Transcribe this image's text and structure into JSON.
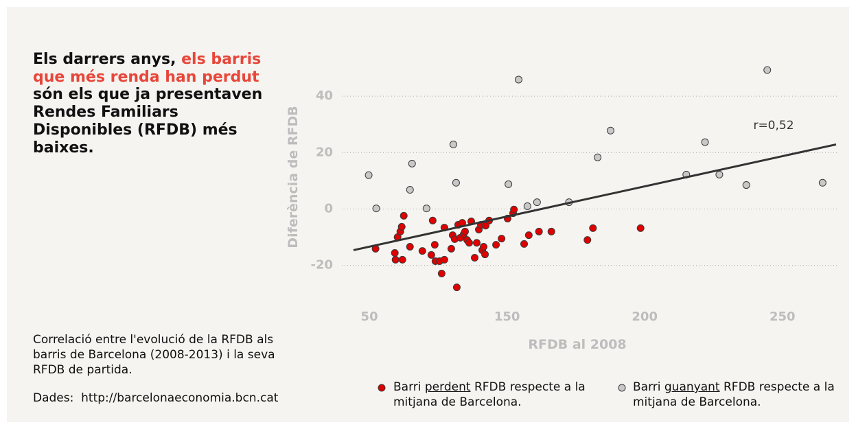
{
  "headline_parts": [
    "Els darrers anys, ",
    "els barris que més renda han perdut",
    " són els que ja presentaven Rendes Familiars Disponibles (RFDB) més baixes."
  ],
  "subtitle": "Correlació entre l'evolució de la RFDB als barris de Barcelona (2008-2013) i la seva RFDB de partida.",
  "source": "Dades:  http://barcelonaeconomia.bcn.cat",
  "chart_data": {
    "type": "scatter",
    "x_label": "RFDB al 2008",
    "y_label": "Diferència de RFDB",
    "annotation": "r=0,52",
    "xlim": [
      36,
      270
    ],
    "xticks": [
      50,
      150,
      200,
      250
    ],
    "ylim": [
      -33,
      51
    ],
    "yticks": [
      -20,
      0,
      20,
      40
    ],
    "grid": true,
    "trendline": {
      "color": "#333333",
      "x": [
        38.5,
        269.5
      ],
      "y": [
        -14.6,
        22.9
      ]
    },
    "series": [
      {
        "name": "Barri perdent RFDB respecte a la mitjana de Barcelona.",
        "color": "#e00000",
        "x": [
          54.5,
          68.5,
          69,
          74,
          70.5,
          72.5,
          73.5,
          75,
          79.5,
          88.5,
          95,
          96,
          97.5,
          98,
          101,
          102.5,
          104.5,
          104.5,
          109.5,
          110.5,
          112,
          113.5,
          114.5,
          116,
          117.5,
          118.5,
          119.5,
          121,
          122.5,
          124,
          126.5,
          128,
          129.5,
          131,
          132,
          133,
          134,
          134.5,
          137,
          142,
          146,
          150.2,
          152.2,
          152.5,
          156.2,
          157.9,
          161.6,
          166.1,
          179.2,
          181.2,
          198.5
        ],
        "values": [
          -14.1,
          -15.6,
          -18.0,
          -18.0,
          -10.0,
          -8.0,
          -6.3,
          -2.4,
          -13.4,
          -14.9,
          -16.3,
          -4.1,
          -12.7,
          -18.5,
          -18.5,
          -22.9,
          -18.0,
          -6.6,
          -14.1,
          -9.3,
          -10.7,
          -27.8,
          -5.6,
          -10.2,
          -4.9,
          -9.0,
          -8.0,
          -11.0,
          -12.0,
          -4.4,
          -17.3,
          -12.0,
          -7.3,
          -5.6,
          -14.6,
          -13.4,
          -16.1,
          -5.9,
          -4.1,
          -12.7,
          -10.5,
          -3.4,
          -1.5,
          -0.2,
          -12.4,
          -9.3,
          -8.0,
          -8.0,
          -11.0,
          -6.8,
          -6.8
        ]
      },
      {
        "name": "Barri guanyant RFDB respecte a la mitjana de Barcelona.",
        "color": "#c8c8c8",
        "x": [
          49.5,
          55,
          81,
          79.5,
          91.5,
          111,
          113,
          150.5,
          154.2,
          157.4,
          160.9,
          172.5,
          182.9,
          187.6,
          215.1,
          221.9,
          227.1,
          236.9,
          244.5,
          264.6
        ],
        "values": [
          12.0,
          0.2,
          16.1,
          6.8,
          0.2,
          22.9,
          9.3,
          8.8,
          45.9,
          1.0,
          2.4,
          2.4,
          18.3,
          27.8,
          12.2,
          23.7,
          12.2,
          8.5,
          49.3,
          9.3
        ]
      }
    ]
  }
}
